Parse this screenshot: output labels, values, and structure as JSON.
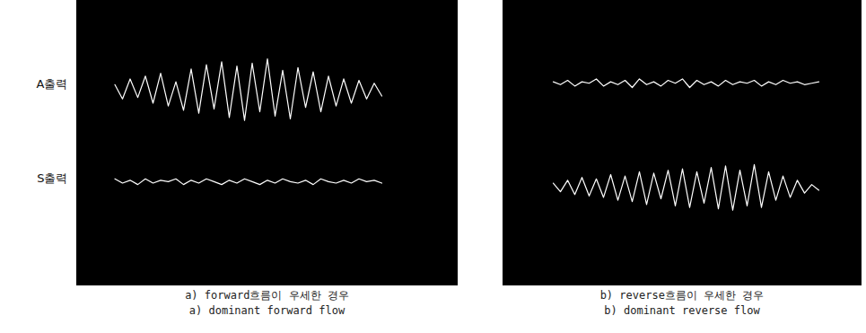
{
  "chart_data": [
    {
      "type": "line",
      "title": "a) forward흐름이 우세한 경우",
      "subtitle": "a) dominant forward flow",
      "tick_labels": false,
      "xlim": [
        0,
        100
      ],
      "ylim": [
        -100,
        100
      ],
      "x": [
        10,
        12,
        14,
        16,
        18,
        20,
        22,
        24,
        26,
        28,
        30,
        32,
        34,
        36,
        38,
        40,
        42,
        44,
        46,
        48,
        50,
        52,
        54,
        56,
        58,
        60,
        62,
        64,
        66,
        68,
        70,
        72,
        74,
        76,
        78,
        80
      ],
      "series": [
        {
          "name": "A출력",
          "color": "#ffffff",
          "values": [
            41,
            31,
            45,
            32,
            47,
            28,
            49,
            26,
            43,
            23,
            52,
            21,
            55,
            24,
            57,
            18,
            54,
            16,
            56,
            22,
            59,
            19,
            51,
            17,
            53,
            25,
            50,
            22,
            47,
            26,
            45,
            28,
            44,
            31,
            42,
            33
          ]
        },
        {
          "name": "S출력",
          "color": "#ffffff",
          "values": [
            -25,
            -28,
            -26,
            -29,
            -25,
            -28,
            -26,
            -27,
            -25,
            -29,
            -26,
            -28,
            -25,
            -27,
            -29,
            -26,
            -28,
            -25,
            -27,
            -29,
            -26,
            -28,
            -25,
            -27,
            -28,
            -26,
            -29,
            -25,
            -27,
            -28,
            -26,
            -28,
            -25,
            -27,
            -26,
            -28
          ]
        }
      ]
    },
    {
      "type": "line",
      "title": "b) reverse흐름이 우세한 경우",
      "subtitle": "b) dominant reverse flow",
      "tick_labels": false,
      "xlim": [
        0,
        100
      ],
      "ylim": [
        -100,
        100
      ],
      "x": [
        14,
        16,
        18,
        20,
        22,
        24,
        26,
        28,
        30,
        32,
        34,
        36,
        38,
        40,
        42,
        44,
        46,
        48,
        50,
        52,
        54,
        56,
        58,
        60,
        62,
        64,
        66,
        68,
        70,
        72,
        74,
        76,
        78,
        80,
        82,
        84,
        86,
        88
      ],
      "series": [
        {
          "color": "#ffffff",
          "values": [
            43,
            41,
            44,
            40,
            43,
            42,
            45,
            40,
            43,
            41,
            44,
            39,
            45,
            41,
            43,
            40,
            44,
            42,
            45,
            39,
            44,
            41,
            43,
            40,
            44,
            41,
            43,
            42,
            44,
            40,
            43,
            41,
            44,
            42,
            43,
            41,
            42,
            43
          ]
        },
        {
          "color": "#ffffff",
          "values": [
            -28,
            -34,
            -26,
            -36,
            -24,
            -37,
            -25,
            -38,
            -22,
            -40,
            -23,
            -41,
            -20,
            -43,
            -21,
            -39,
            -19,
            -44,
            -18,
            -45,
            -20,
            -42,
            -17,
            -46,
            -16,
            -47,
            -19,
            -44,
            -15,
            -45,
            -20,
            -40,
            -23,
            -38,
            -26,
            -35,
            -29,
            -33
          ]
        }
      ]
    }
  ]
}
